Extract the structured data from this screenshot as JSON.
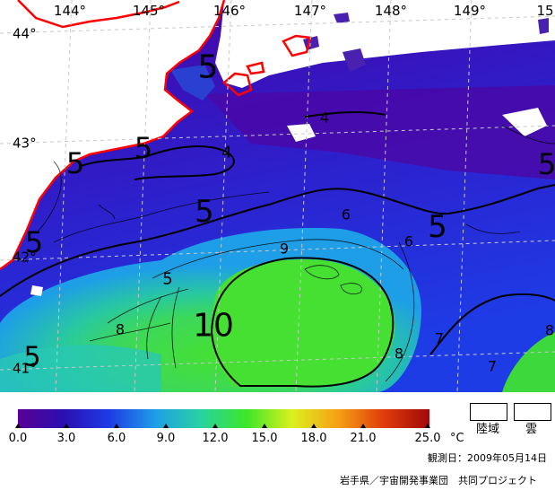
{
  "map": {
    "longitude_labels": [
      "144°",
      "145°",
      "146°",
      "147°",
      "148°",
      "149°",
      "15"
    ],
    "latitude_labels": [
      "44°",
      "43°",
      "42°",
      "41°"
    ],
    "contour_labels": [
      "5",
      "5",
      "5",
      "5",
      "5",
      "5",
      "5",
      "5",
      "5",
      "4",
      "4",
      "6",
      "6",
      "9",
      "8",
      "8",
      "7",
      "7",
      "10",
      "8"
    ],
    "colors": {
      "land_mask": "#ffffff",
      "coastline": "#ff0000",
      "cloud_mask": "#ffffff",
      "contour": "#000000",
      "grid": "#c8c8c8"
    }
  },
  "legend": {
    "tick_labels": [
      "0.0",
      "3.0",
      "6.0",
      "9.0",
      "12.0",
      "15.0",
      "18.0",
      "21.0",
      "25.0"
    ],
    "unit": "°C",
    "colors": [
      "#5a0096",
      "#2a10b0",
      "#1e3ce6",
      "#1e9ee6",
      "#28d2a0",
      "#3ce628",
      "#dcf01e",
      "#f5a014",
      "#e03c0a",
      "#a00a0a"
    ],
    "land_label": "陸域",
    "cloud_label": "雲"
  },
  "observation_date": "観測日：2009年05月14日",
  "credit": "岩手県／宇宙開発事業団　共同プロジェクト"
}
